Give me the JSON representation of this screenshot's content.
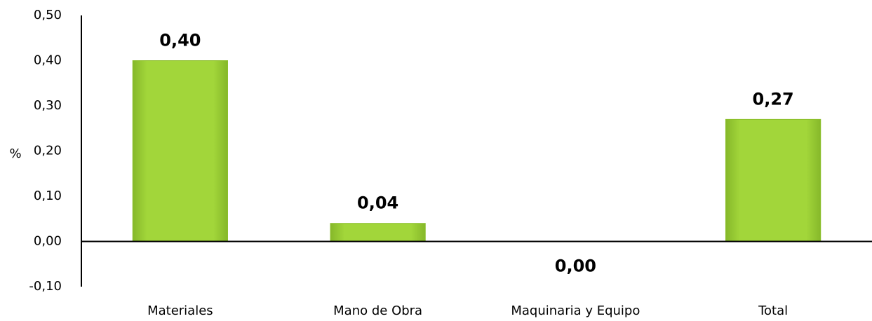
{
  "chart_data": {
    "type": "bar",
    "y_label": "%",
    "categories": [
      "Materiales",
      "Mano de Obra",
      "Maquinaria y Equipo",
      "Total"
    ],
    "values": [
      0.4,
      0.04,
      0.0,
      0.27
    ],
    "value_labels": [
      "0,40",
      "0,04",
      "0,00",
      "0,27"
    ],
    "color": "#9dd132",
    "ylim": [
      -0.1,
      0.5
    ],
    "yticks": [
      {
        "value": -0.1,
        "label": "-0,10"
      },
      {
        "value": 0,
        "label": "0,00"
      },
      {
        "value": 0.1,
        "label": "0,10"
      },
      {
        "value": 0.2,
        "label": "0,20"
      },
      {
        "value": 0.3,
        "label": "0,30"
      },
      {
        "value": 0.4,
        "label": "0,40"
      },
      {
        "value": 0.5,
        "label": "0,50"
      }
    ],
    "grid": false
  }
}
